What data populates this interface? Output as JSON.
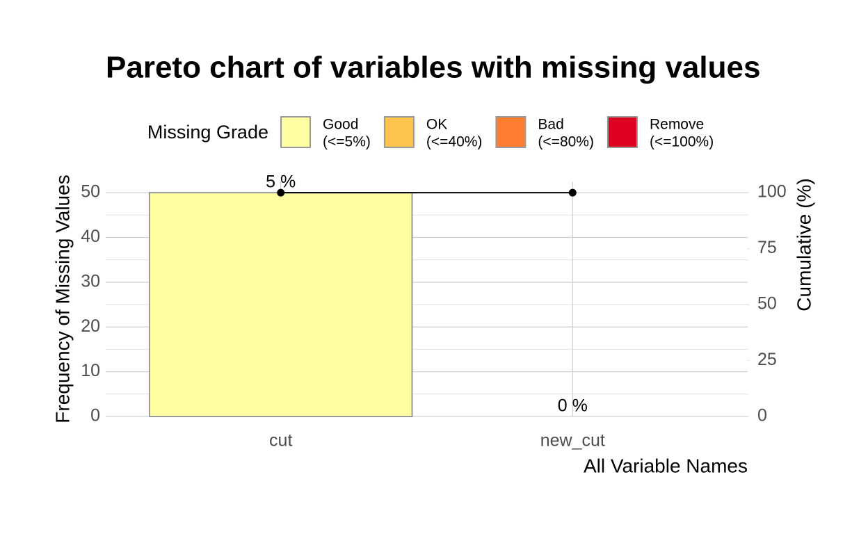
{
  "chart_data": {
    "type": "bar",
    "title": "Pareto chart of variables with missing values",
    "x_label": "All Variable Names",
    "y_label": "Frequency of Missing Values",
    "y2_label": "Cumulative (%)",
    "categories": [
      "cut",
      "new_cut"
    ],
    "series": [
      {
        "type": "bar",
        "values": [
          50,
          0
        ],
        "color": "#FFFFA2",
        "border": "#999999"
      },
      {
        "type": "line",
        "axis": "y2",
        "values": [
          100,
          100
        ],
        "color": "#000000"
      }
    ],
    "missing_pct": {
      "values": [
        5,
        0
      ],
      "value_labels": [
        "5 %",
        "0 %"
      ]
    },
    "ylim": [
      0,
      52.5
    ],
    "yticks": [
      0,
      10,
      20,
      30,
      40,
      50
    ],
    "yminor": [
      5,
      15,
      25,
      35,
      45
    ],
    "y2lim": [
      0,
      105
    ],
    "y2ticks": [
      0,
      25,
      50,
      75,
      100
    ],
    "grid": true,
    "legend": {
      "position": "top",
      "title": "Missing Grade",
      "items": [
        {
          "label": [
            "Good",
            "(<=5%)"
          ],
          "color": "#FFFFA2"
        },
        {
          "label": [
            "OK",
            "(<=40%)"
          ],
          "color": "#FEC24F"
        },
        {
          "label": [
            "Bad",
            "(<=80%)"
          ],
          "color": "#FD7E30"
        },
        {
          "label": [
            "Remove",
            "(<=100%)"
          ],
          "color": "#DD0021"
        }
      ]
    }
  }
}
